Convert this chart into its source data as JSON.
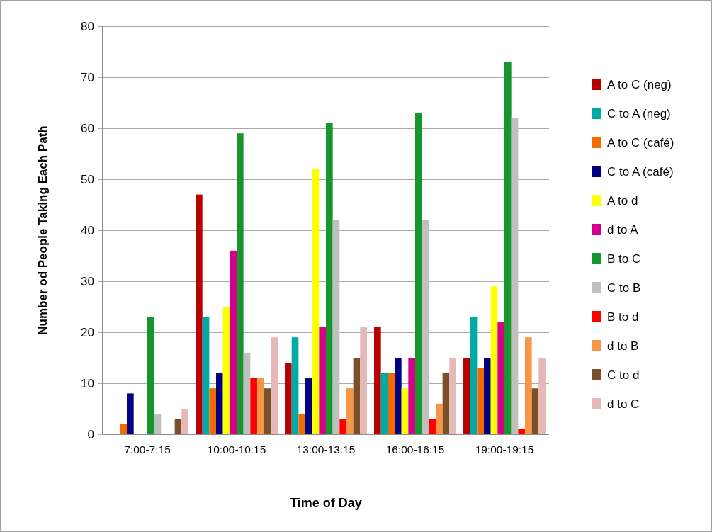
{
  "chart_data": {
    "type": "bar",
    "xlabel": "Time of Day",
    "ylabel": "Number od People Taking Each Path",
    "categories": [
      "7:00-7:15",
      "10:00-10:15",
      "13:00-13:15",
      "16:00-16:15",
      "19:00-19:15"
    ],
    "ylim": [
      0,
      80
    ],
    "yticks": [
      0,
      10,
      20,
      30,
      40,
      50,
      60,
      70,
      80
    ],
    "grid": "y",
    "legend": "right",
    "series": [
      {
        "name": "A to C (neg)",
        "color": "#b80000",
        "values": [
          0,
          47,
          14,
          21,
          15
        ]
      },
      {
        "name": "C to A (neg)",
        "color": "#00aba5",
        "values": [
          0,
          23,
          19,
          12,
          23
        ]
      },
      {
        "name": "A to C (café)",
        "color": "#f26a00",
        "values": [
          2,
          9,
          4,
          12,
          13
        ]
      },
      {
        "name": "C to A (café)",
        "color": "#000080",
        "values": [
          8,
          12,
          11,
          15,
          15
        ]
      },
      {
        "name": "A to d",
        "color": "#ffff00",
        "values": [
          0,
          25,
          52,
          9,
          29
        ]
      },
      {
        "name": "d to A",
        "color": "#d4008a",
        "values": [
          0,
          36,
          21,
          15,
          22
        ]
      },
      {
        "name": "B to C",
        "color": "#17962e",
        "values": [
          23,
          59,
          61,
          63,
          73
        ]
      },
      {
        "name": "C to B",
        "color": "#c0c0c0",
        "values": [
          4,
          16,
          42,
          42,
          62
        ]
      },
      {
        "name": "B to d",
        "color": "#ff0000",
        "values": [
          0,
          11,
          3,
          3,
          1
        ]
      },
      {
        "name": "d to B",
        "color": "#f79646",
        "values": [
          0,
          11,
          9,
          6,
          19
        ]
      },
      {
        "name": "C to d",
        "color": "#7b4f28",
        "values": [
          3,
          9,
          15,
          12,
          9
        ]
      },
      {
        "name": "d to C",
        "color": "#e6b8b7",
        "values": [
          5,
          19,
          21,
          15,
          15
        ]
      }
    ]
  }
}
